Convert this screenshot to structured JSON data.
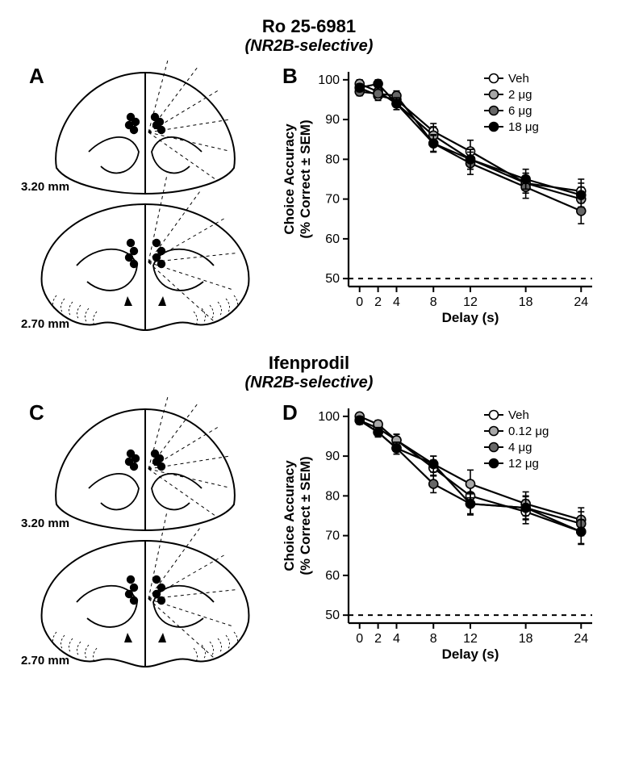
{
  "figure": {
    "top": {
      "drug_name": "Ro 25-6981",
      "selectivity": "(NR2B-selective)",
      "panelA": {
        "label": "A",
        "coord_upper": "3.20 mm",
        "coord_lower": "2.70 mm",
        "dot_color": "#000000",
        "outline_color": "#000000"
      },
      "panelB": {
        "label": "B",
        "type": "line",
        "x_ticks": [
          0,
          2,
          4,
          8,
          12,
          18,
          24
        ],
        "y_ticks": [
          50,
          60,
          70,
          80,
          90,
          100
        ],
        "ylim": [
          48,
          102
        ],
        "xlim": [
          -1.2,
          25.2
        ],
        "xlabel": "Delay (s)",
        "ylabel": "Choice Accuracy",
        "ylabel_sub": "(% Correct ± SEM)",
        "chance_line_y": 50,
        "chance_line_dash": "6,6",
        "axis_color": "#000000",
        "grid_color": "none",
        "background_color": "#ffffff",
        "line_width": 2.2,
        "marker_radius": 5.5,
        "label_fontsize": 17,
        "tick_fontsize": 16,
        "legend_fontsize": 15,
        "series": [
          {
            "name": "Veh",
            "fill": "#ffffff",
            "stroke": "#000000",
            "x": [
              0,
              2,
              4,
              8,
              12,
              18,
              24
            ],
            "y": [
              98,
              96,
              95,
              87,
              82,
              74,
              72
            ],
            "err": [
              1.2,
              1.2,
              1.5,
              2.0,
              2.8,
              2.5,
              3.0
            ]
          },
          {
            "name": "2 μg",
            "fill": "#a7a7a7",
            "stroke": "#000000",
            "x": [
              0,
              2,
              4,
              8,
              12,
              18,
              24
            ],
            "y": [
              99,
              97,
              94,
              86,
              80,
              74,
              70
            ],
            "err": [
              1.0,
              1.0,
              1.5,
              2.2,
              2.5,
              2.5,
              3.0
            ]
          },
          {
            "name": "6 μg",
            "fill": "#676767",
            "stroke": "#000000",
            "x": [
              0,
              2,
              4,
              8,
              12,
              18,
              24
            ],
            "y": [
              97,
              96.5,
              96,
              84,
              79,
              73,
              67
            ],
            "err": [
              1.0,
              1.0,
              1.2,
              2.2,
              2.8,
              2.8,
              3.2
            ]
          },
          {
            "name": "18 μg",
            "fill": "#000000",
            "stroke": "#000000",
            "x": [
              0,
              2,
              4,
              8,
              12,
              18,
              24
            ],
            "y": [
              98,
              99,
              94,
              84,
              80,
              75,
              71
            ],
            "err": [
              1.0,
              1.0,
              1.5,
              2.0,
              2.5,
              2.5,
              3.0
            ]
          }
        ]
      }
    },
    "bottom": {
      "drug_name": "Ifenprodil",
      "selectivity": "(NR2B-selective)",
      "panelC": {
        "label": "C",
        "coord_upper": "3.20 mm",
        "coord_lower": "2.70 mm",
        "dot_color": "#000000",
        "outline_color": "#000000"
      },
      "panelD": {
        "label": "D",
        "type": "line",
        "x_ticks": [
          0,
          2,
          4,
          8,
          12,
          18,
          24
        ],
        "y_ticks": [
          50,
          60,
          70,
          80,
          90,
          100
        ],
        "ylim": [
          48,
          102
        ],
        "xlim": [
          -1.2,
          25.2
        ],
        "xlabel": "Delay (s)",
        "ylabel": "Choice Accuracy",
        "ylabel_sub": "(% Correct ± SEM)",
        "chance_line_y": 50,
        "chance_line_dash": "6,6",
        "axis_color": "#000000",
        "grid_color": "none",
        "background_color": "#ffffff",
        "line_width": 2.2,
        "marker_radius": 5.5,
        "label_fontsize": 17,
        "tick_fontsize": 16,
        "legend_fontsize": 15,
        "series": [
          {
            "name": "Veh",
            "fill": "#ffffff",
            "stroke": "#000000",
            "x": [
              0,
              2,
              4,
              8,
              12,
              18,
              24
            ],
            "y": [
              99,
              97,
              94,
              87,
              80,
              76,
              71
            ],
            "err": [
              1.0,
              1.0,
              1.5,
              2.0,
              2.8,
              3.0,
              3.2
            ]
          },
          {
            "name": "0.12 μg",
            "fill": "#a7a7a7",
            "stroke": "#000000",
            "x": [
              0,
              2,
              4,
              8,
              12,
              18,
              24
            ],
            "y": [
              100,
              98,
              94,
              88,
              83,
              78,
              74
            ],
            "err": [
              0.8,
              1.0,
              1.5,
              2.0,
              3.5,
              3.0,
              3.0
            ]
          },
          {
            "name": "4 μg",
            "fill": "#676767",
            "stroke": "#000000",
            "x": [
              0,
              2,
              4,
              8,
              12,
              18,
              24
            ],
            "y": [
              99,
              96,
              92,
              83,
              78,
              77,
              73
            ],
            "err": [
              1.0,
              1.2,
              1.5,
              2.2,
              2.8,
              2.8,
              3.0
            ]
          },
          {
            "name": "12 μg",
            "fill": "#000000",
            "stroke": "#000000",
            "x": [
              0,
              2,
              4,
              8,
              12,
              18,
              24
            ],
            "y": [
              99,
              96,
              92,
              88,
              78,
              77,
              71
            ],
            "err": [
              1.0,
              1.0,
              1.5,
              2.0,
              2.5,
              3.0,
              3.0
            ]
          }
        ]
      }
    }
  }
}
